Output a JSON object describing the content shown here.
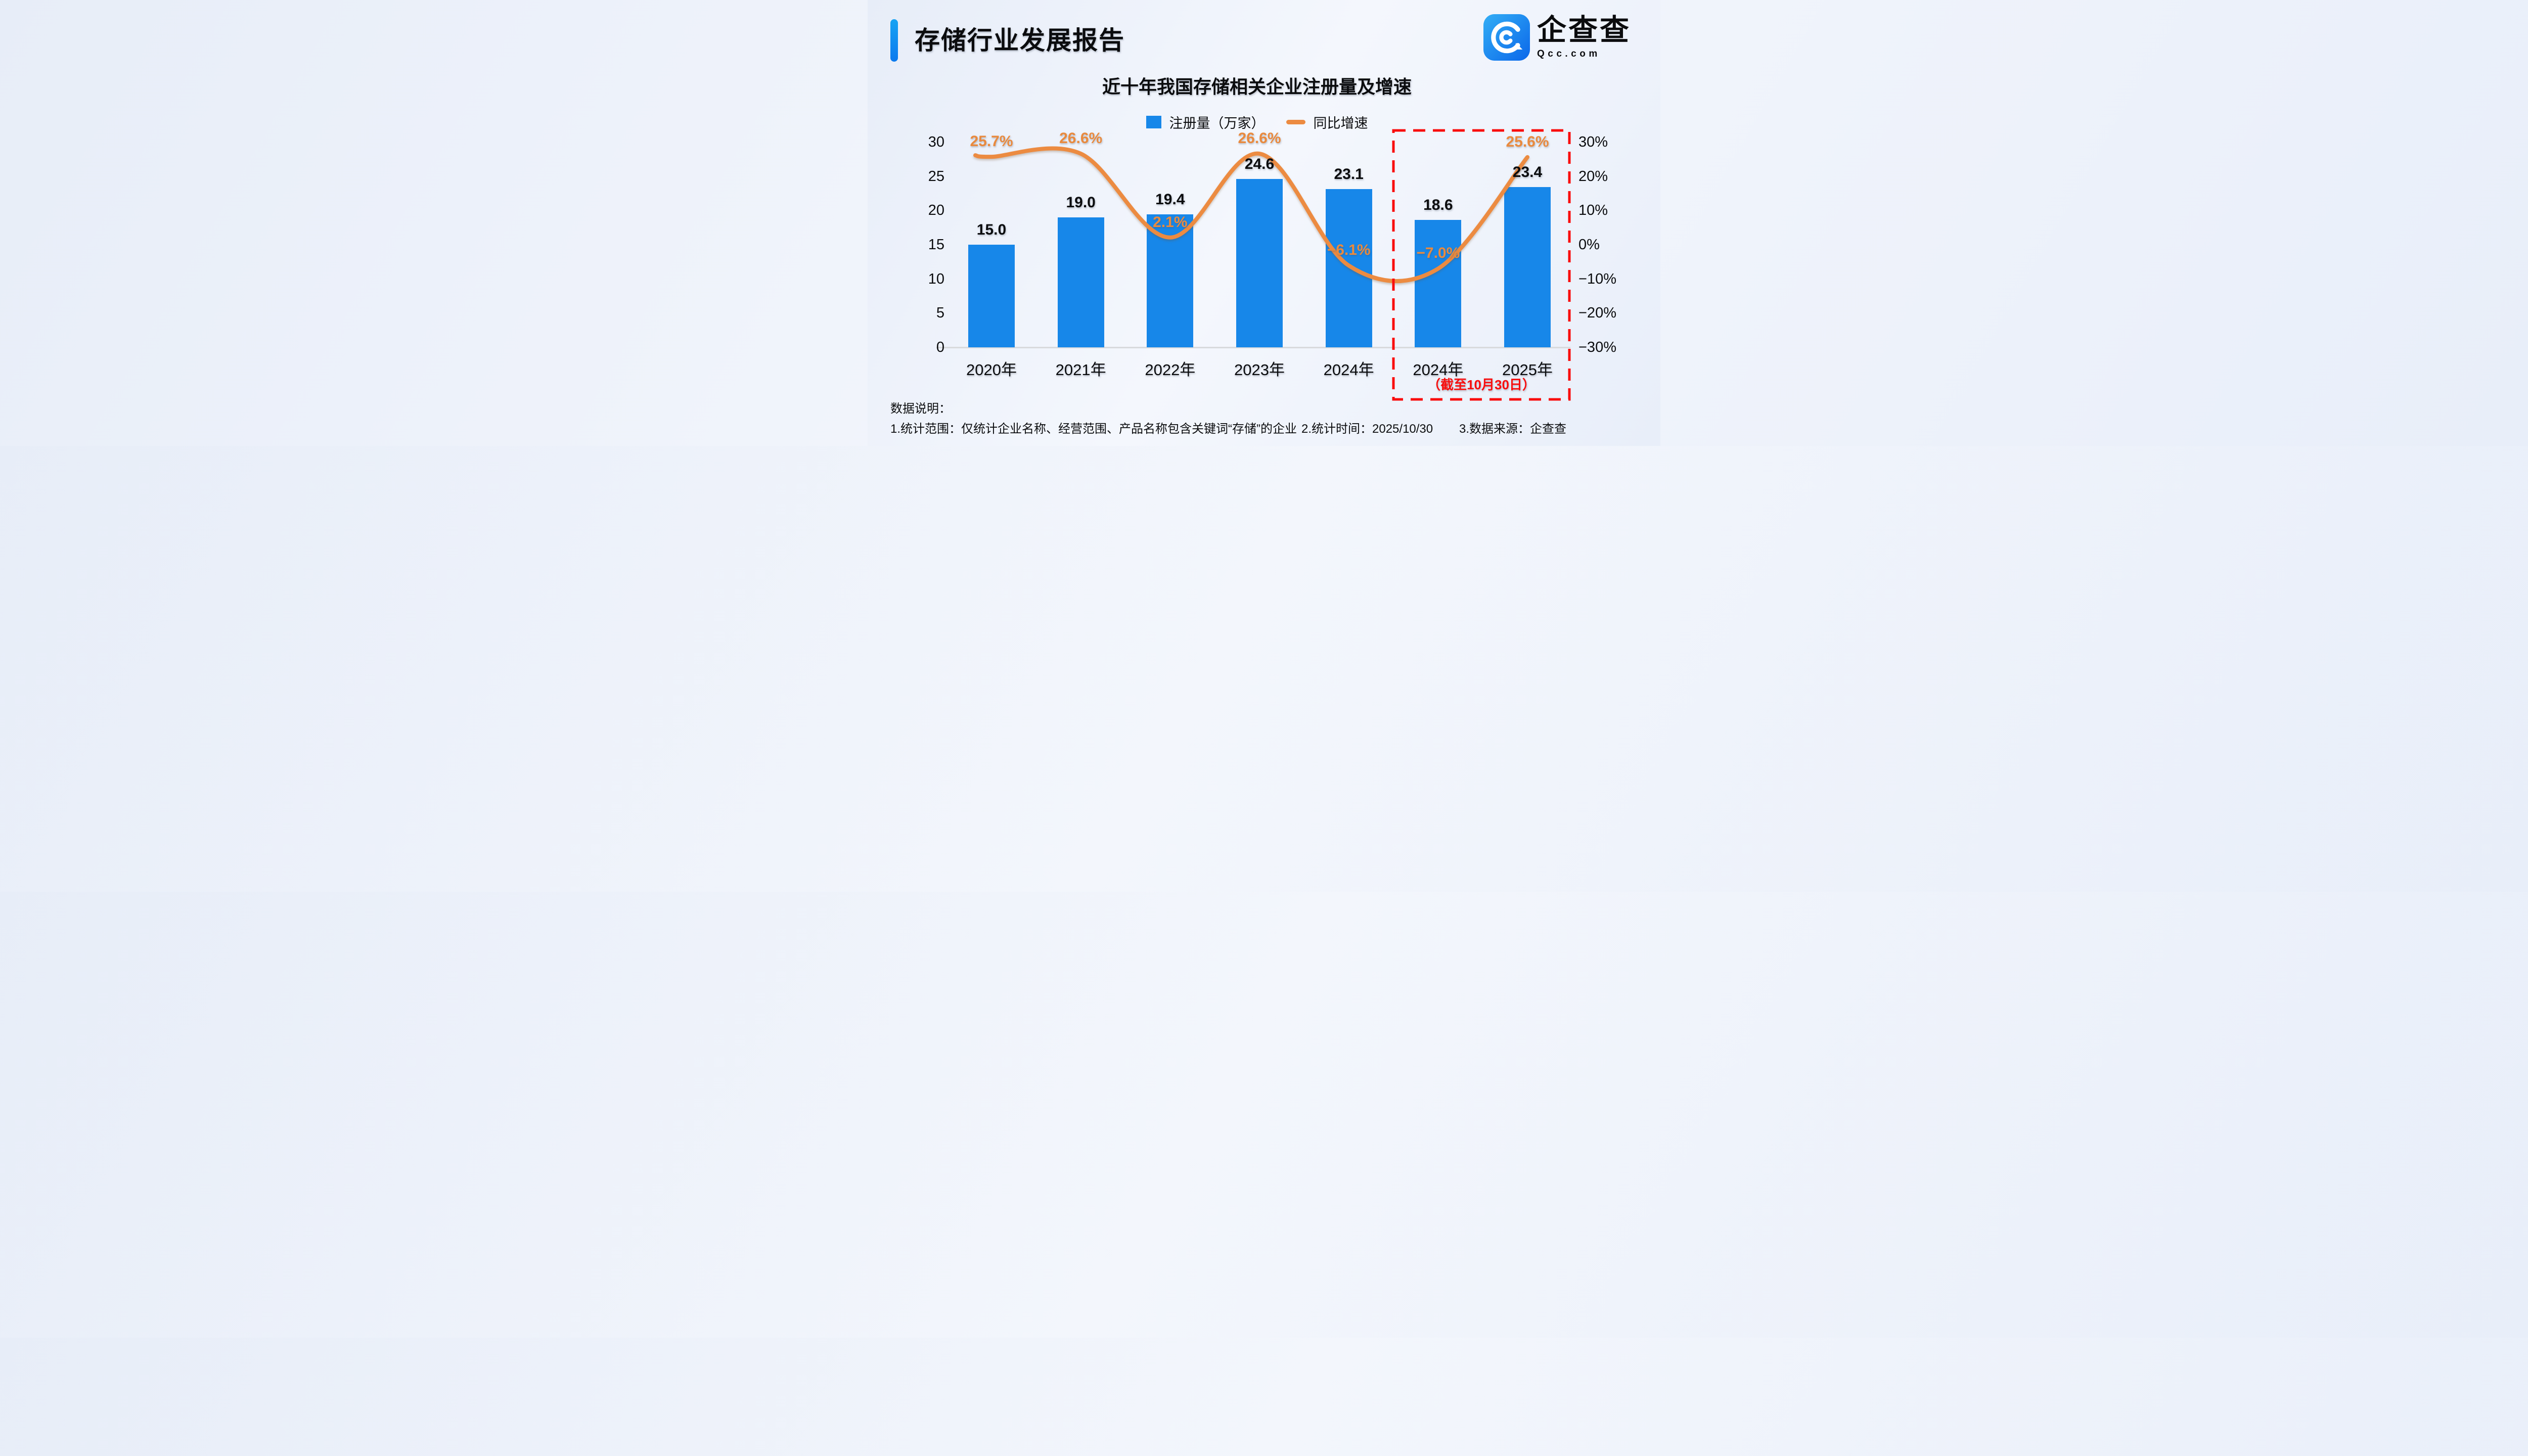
{
  "header": {
    "title": "存储行业发展报告"
  },
  "logo": {
    "brand": "企查查",
    "domain": "Qcc.com"
  },
  "chart": {
    "title": "近十年我国存储相关企业注册量及增速",
    "legend": [
      {
        "label": "注册量（万家）"
      },
      {
        "label": "同比增速"
      }
    ],
    "highlight_note": "（截至10月30日）"
  },
  "chart_data": {
    "type": "bar+line",
    "title": "近十年我国存储相关企业注册量及增速",
    "categories": [
      "2020年",
      "2021年",
      "2022年",
      "2023年",
      "2024年",
      "2024年",
      "2025年"
    ],
    "series": [
      {
        "name": "注册量（万家）",
        "type": "bar",
        "color": "#1787E9",
        "values": [
          15.0,
          19.0,
          19.4,
          24.6,
          23.1,
          18.6,
          23.4
        ],
        "labels": [
          "15.0",
          "19.0",
          "19.4",
          "24.6",
          "23.1",
          "18.6",
          "23.4"
        ]
      },
      {
        "name": "同比增速",
        "type": "line",
        "color": "#EC8B41",
        "values": [
          25.7,
          26.6,
          2.1,
          26.6,
          -6.1,
          -7.0,
          25.6
        ],
        "labels": [
          "25.7%",
          "26.6%",
          "2.1%",
          "26.6%",
          "−6.1%",
          "−7.0%",
          "25.6%"
        ]
      }
    ],
    "left_axis": {
      "ticks": [
        "30",
        "25",
        "20",
        "15",
        "10",
        "5",
        "0"
      ],
      "range": [
        0,
        30
      ]
    },
    "right_axis": {
      "ticks": [
        "30%",
        "20%",
        "10%",
        "0%",
        "−10%",
        "−20%",
        "−30%"
      ],
      "range": [
        -30,
        30
      ]
    },
    "grid": false,
    "legend_position": "top",
    "highlight_box": {
      "note": "（截至10月30日）",
      "covers": [
        "2024年",
        "2025年"
      ]
    }
  },
  "footnotes": {
    "heading": "数据说明：",
    "items": [
      "1.统计范围：仅统计企业名称、经营范围、产品名称包含关键词“存储”的企业",
      "2.统计时间：2025/10/30",
      "3.数据来源：企查查"
    ]
  },
  "colors": {
    "bar": "#1787E9",
    "line": "#EC8B41",
    "highlight": "#F90D0D",
    "text": "#0B0C0E",
    "accent_gradient_top": "#16A3F3",
    "accent_gradient_bottom": "#0B79EE"
  }
}
